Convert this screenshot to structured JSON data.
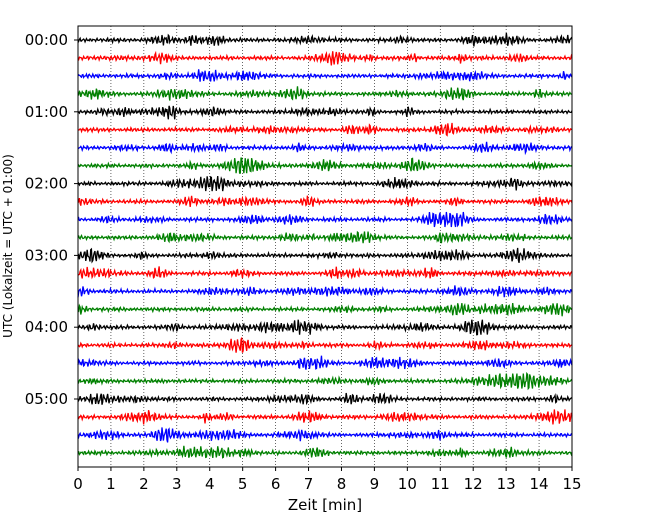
{
  "chart_data": {
    "type": "line",
    "xlabel": "Zeit  [min]",
    "ylabel": "UTC (Lokalzeit = UTC + 01:00)",
    "xlim": [
      0,
      15
    ],
    "x_ticks": [
      "0",
      "1",
      "2",
      "3",
      "4",
      "5",
      "6",
      "7",
      "8",
      "9",
      "10",
      "11",
      "12",
      "13",
      "14",
      "15"
    ],
    "y_ticks": [
      "00:00",
      "01:00",
      "02:00",
      "03:00",
      "04:00",
      "05:00"
    ],
    "vertical_grid": "dotted at each minute",
    "trace_interval_minutes": 15,
    "trace_count": 24,
    "trace_colors": [
      "#000000",
      "#ff0000",
      "#0000ff",
      "#008000"
    ],
    "traces_start_utc": "00:00",
    "traces_end_utc": "05:45"
  }
}
